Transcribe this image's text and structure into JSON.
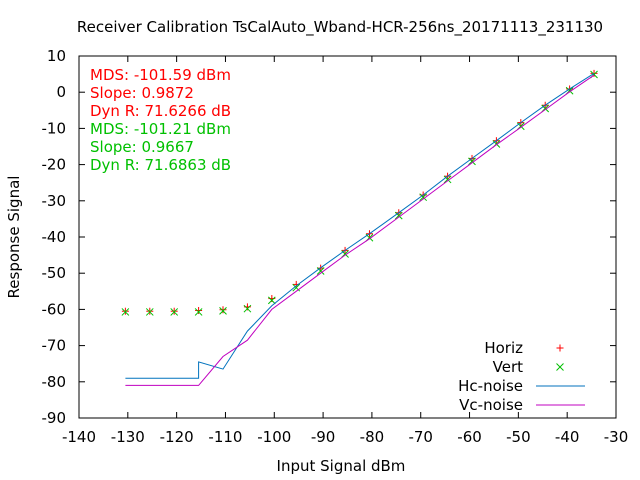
{
  "chart_data": {
    "type": "line",
    "title": "Receiver Calibration TsCalAuto_Wband-HCR-256ns_20171113_231130",
    "xlabel": "Input Signal dBm",
    "ylabel": "Response Signal",
    "xlim": [
      -140,
      -30
    ],
    "ylim": [
      -90,
      10
    ],
    "xticks": [
      -140,
      -130,
      -120,
      -110,
      -100,
      -90,
      -80,
      -70,
      -60,
      -50,
      -40,
      -30
    ],
    "yticks": [
      10,
      0,
      -10,
      -20,
      -30,
      -40,
      -50,
      -60,
      -70,
      -80,
      -90
    ],
    "grid": false,
    "legend_position": "bottom-right",
    "annotations": [
      {
        "text": "MDS: -101.59 dBm",
        "color": "#ff0000"
      },
      {
        "text": "Slope: 0.9872",
        "color": "#ff0000"
      },
      {
        "text": "Dyn R: 71.6266 dB",
        "color": "#ff0000"
      },
      {
        "text": "MDS: -101.21 dBm",
        "color": "#00c000"
      },
      {
        "text": "Slope: 0.9667",
        "color": "#00c000"
      },
      {
        "text": "Dyn R: 71.6863 dB",
        "color": "#00c000"
      }
    ],
    "series": [
      {
        "name": "Horiz",
        "kind": "points",
        "marker": "plus",
        "color": "#ff0000",
        "x": [
          -130.5,
          -125.5,
          -120.5,
          -115.5,
          -110.5,
          -105.5,
          -100.5,
          -95.5,
          -90.5,
          -85.5,
          -80.5,
          -74.5,
          -69.5,
          -64.5,
          -59.5,
          -54.5,
          -49.5,
          -44.5,
          -39.5,
          -34.5
        ],
        "y": [
          -60.5,
          -60.5,
          -60.5,
          -60.3,
          -60.1,
          -59.3,
          -57.0,
          -53.1,
          -48.6,
          -43.7,
          -39.1,
          -33.3,
          -28.4,
          -23.2,
          -18.3,
          -13.4,
          -8.4,
          -3.6,
          0.9,
          5.2
        ]
      },
      {
        "name": "Vert",
        "kind": "points",
        "marker": "cross",
        "color": "#00c000",
        "x": [
          -130.5,
          -125.5,
          -120.5,
          -115.5,
          -110.5,
          -105.5,
          -100.5,
          -95.5,
          -90.5,
          -85.5,
          -80.5,
          -74.5,
          -69.5,
          -64.5,
          -59.5,
          -54.5,
          -49.5,
          -44.5,
          -39.5,
          -34.5
        ],
        "y": [
          -60.7,
          -60.7,
          -60.7,
          -60.7,
          -60.4,
          -59.8,
          -57.5,
          -54.0,
          -49.4,
          -44.7,
          -40.2,
          -34.1,
          -29.0,
          -24.1,
          -19.1,
          -14.3,
          -9.4,
          -4.5,
          0.4,
          4.9
        ]
      },
      {
        "name": "Hc-noise",
        "kind": "line",
        "color": "#0072bd",
        "x": [
          -130.5,
          -115.5,
          -115.5,
          -110.5,
          -105.5,
          -100.5,
          -95.5,
          -90.5,
          -85.5,
          -80.5,
          -74.5,
          -69.5,
          -64.5,
          -59.5,
          -54.5,
          -49.5,
          -44.5,
          -39.5,
          -34.5
        ],
        "y": [
          -79.0,
          -79.0,
          -74.5,
          -76.5,
          -66.0,
          -59.0,
          -53.5,
          -48.5,
          -43.7,
          -39.1,
          -33.3,
          -28.4,
          -23.2,
          -18.3,
          -13.4,
          -8.4,
          -3.6,
          0.9,
          5.2
        ]
      },
      {
        "name": "Vc-noise",
        "kind": "line",
        "color": "#c000c0",
        "x": [
          -130.5,
          -115.5,
          -110.5,
          -105.5,
          -100.5,
          -95.5,
          -90.5,
          -85.5,
          -80.5,
          -74.5,
          -69.5,
          -64.5,
          -59.5,
          -54.5,
          -49.5,
          -44.5,
          -39.5,
          -34.5
        ],
        "y": [
          -81.0,
          -81.0,
          -73.0,
          -68.5,
          -60.0,
          -55.0,
          -50.0,
          -45.0,
          -40.5,
          -34.5,
          -29.5,
          -24.5,
          -19.5,
          -14.5,
          -9.7,
          -4.8,
          0.1,
          4.7
        ]
      }
    ]
  }
}
